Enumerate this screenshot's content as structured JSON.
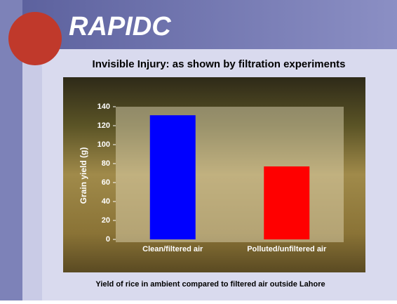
{
  "header": {
    "logo": "RAPIDC",
    "title": "Invisible Injury: as shown by filtration experiments"
  },
  "chart_data": {
    "type": "bar",
    "y_label": "Grain yield (g)",
    "categories": [
      "Clean/filtered air",
      "Polluted/unfiltered air"
    ],
    "values": [
      131,
      77
    ],
    "colors": [
      "#0000ff",
      "#ff0000"
    ],
    "ylim": [
      0,
      140
    ],
    "yticks": [
      0,
      20,
      40,
      60,
      80,
      100,
      120,
      140
    ],
    "grid": false
  },
  "caption": "Yield of rice in ambient compared to filtered air outside Lahore"
}
